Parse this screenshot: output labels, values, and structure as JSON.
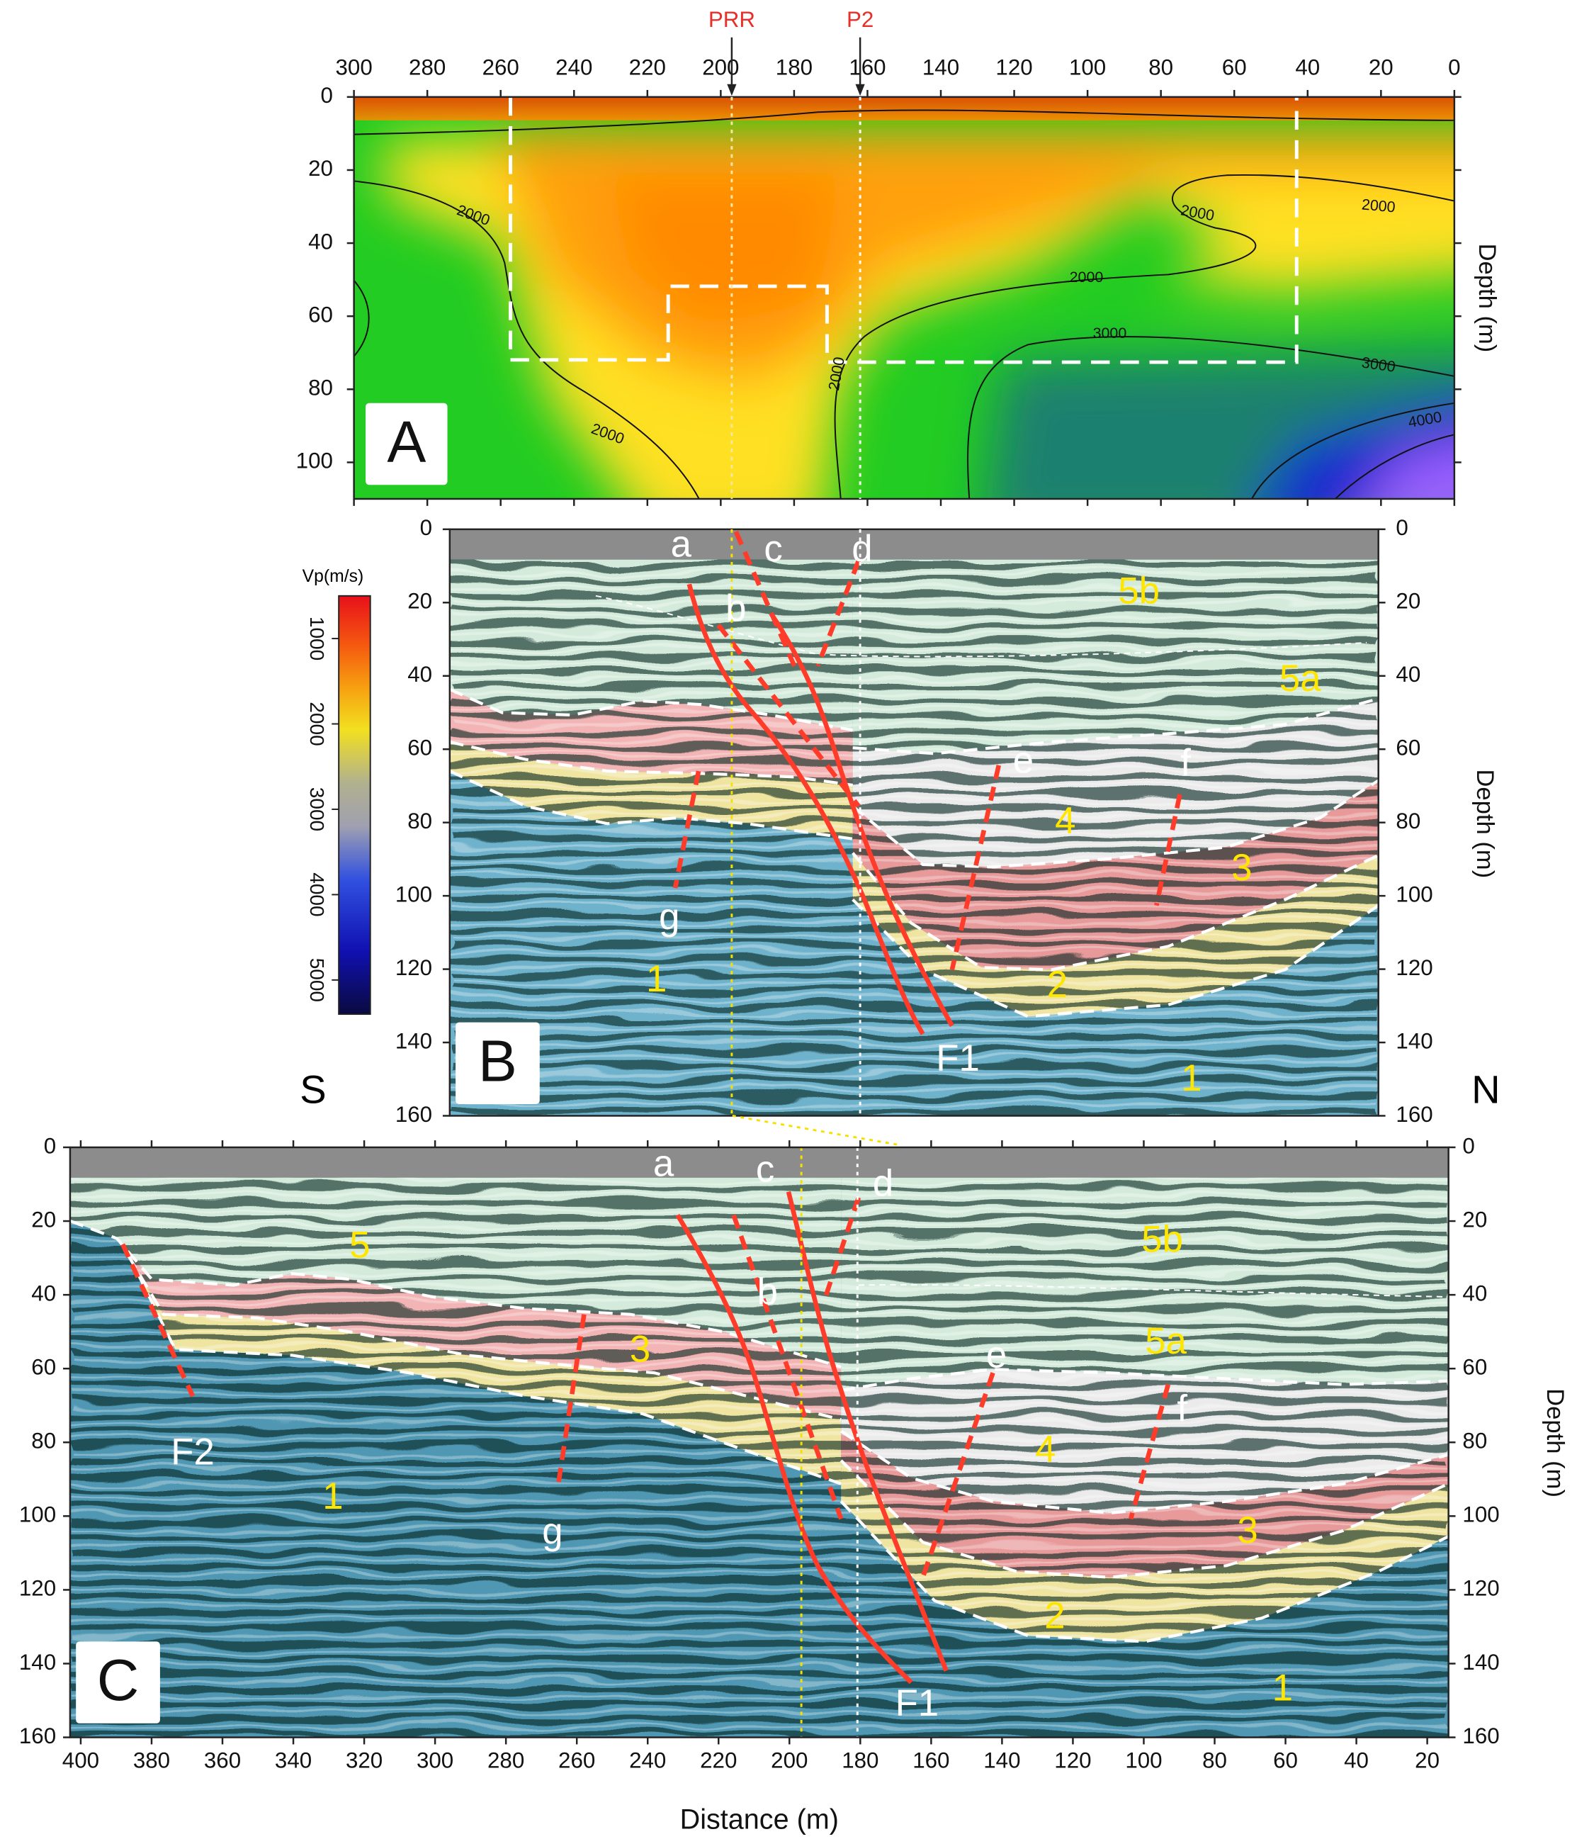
{
  "panels": [
    {
      "label": "A",
      "xlim": [
        300,
        0
      ],
      "xticks": [
        300,
        280,
        260,
        240,
        220,
        200,
        180,
        160,
        140,
        120,
        100,
        80,
        60,
        40,
        20,
        0
      ],
      "ylim": [
        0,
        110
      ],
      "yticks": [
        0,
        20,
        40,
        60,
        80,
        100
      ],
      "ylabel": "Depth (m)",
      "markers": [
        {
          "label": "PRR",
          "x": 197
        },
        {
          "label": "P2",
          "x": 162
        }
      ],
      "contour_labels": [
        "2000",
        "2000",
        "2000",
        "2000",
        "2000",
        "2000",
        "3000",
        "3000",
        "4000"
      ]
    },
    {
      "label": "B",
      "ylim": [
        0,
        160
      ],
      "yticks": [
        0,
        20,
        40,
        60,
        80,
        100,
        120,
        140,
        160
      ],
      "ylabel": "Depth (m)",
      "annotations": [
        "a",
        "c",
        "d",
        "b",
        "5b",
        "5a",
        "e",
        "f",
        "4",
        "3",
        "g",
        "2",
        "1",
        "F1",
        "1"
      ]
    },
    {
      "label": "C",
      "xlim": [
        403,
        14
      ],
      "xticks": [
        400,
        380,
        360,
        340,
        320,
        300,
        280,
        260,
        240,
        220,
        200,
        180,
        160,
        140,
        120,
        100,
        80,
        60,
        40,
        20
      ],
      "xlabel": "Distance (m)",
      "ylim": [
        0,
        160
      ],
      "yticks": [
        0,
        20,
        40,
        60,
        80,
        100,
        120,
        140,
        160
      ],
      "ylabel": "Depth (m)",
      "annotations": [
        "a",
        "c",
        "d",
        "b",
        "5",
        "5b",
        "5a",
        "3",
        "e",
        "f",
        "4",
        "F2",
        "1",
        "g",
        "3",
        "2",
        "F1",
        "1"
      ]
    }
  ],
  "colorbar": {
    "title": "Vp(m/s)",
    "lim": [
      500,
      5400
    ],
    "ticks": [
      1000,
      2000,
      3000,
      4000,
      5000
    ]
  },
  "orientation": {
    "south": "S",
    "north": "N"
  }
}
